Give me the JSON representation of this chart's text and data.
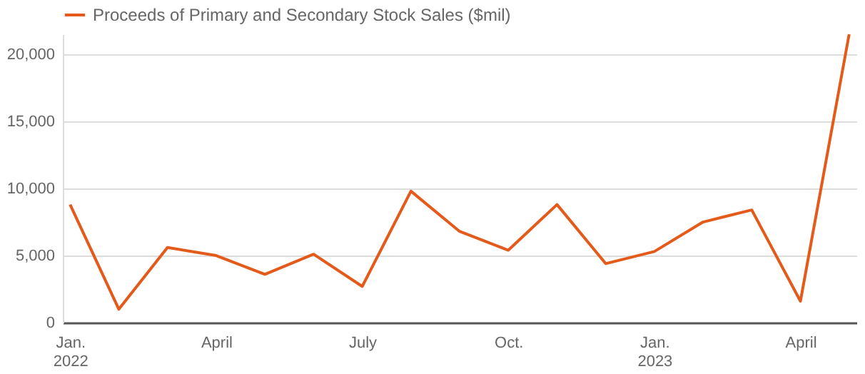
{
  "chart_data": {
    "type": "line",
    "categories": [
      "Jan. 2022",
      null,
      null,
      "April",
      null,
      null,
      "July",
      null,
      null,
      "Oct.",
      null,
      null,
      "Jan. 2023",
      null,
      null,
      "April",
      null
    ],
    "series": [
      {
        "name": "Proceeds of Primary and Secondary Stock Sales ($mil)",
        "color": "#e35a1a",
        "values": [
          8800,
          1000,
          5600,
          5000,
          3600,
          5100,
          2700,
          9800,
          6800,
          5400,
          8800,
          4400,
          5300,
          7500,
          8400,
          1600,
          21500
        ]
      }
    ],
    "ylim": [
      0,
      21500
    ],
    "yticks": [
      0,
      {
        "value": 5000,
        "label": "5,000"
      },
      {
        "value": 10000,
        "label": "10,000"
      },
      {
        "value": 15000,
        "label": "15,000"
      },
      {
        "value": 20000,
        "label": "20,000"
      }
    ],
    "grid": "y",
    "legend": "top left"
  }
}
